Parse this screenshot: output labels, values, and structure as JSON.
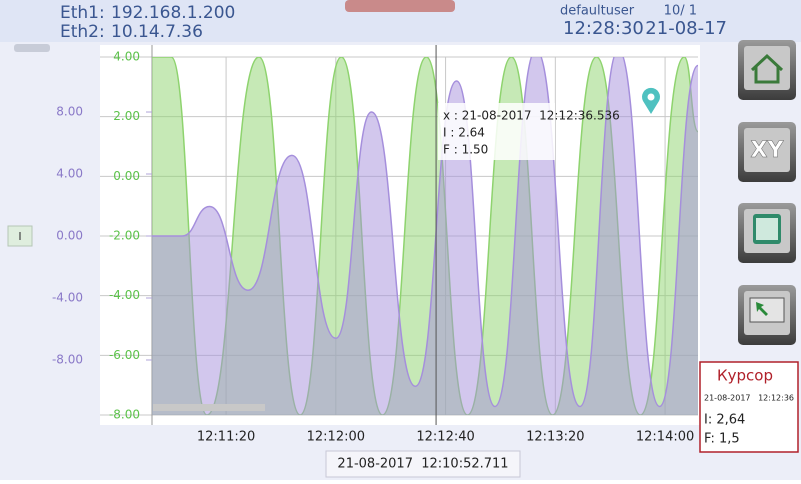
{
  "header": {
    "eth1": "Eth1:",
    "eth1_ip": "192.168.1.200",
    "eth2": "Eth2:",
    "eth2_ip": "10.14.7.36",
    "user": "defaultuser",
    "page": "10/ 1",
    "time": "12:28:30",
    "date": "21-08-17"
  },
  "chart_data": {
    "type": "line",
    "xlim": [
      44453,
      44652
    ],
    "xticks": [
      {
        "value": 44480,
        "label": "12:11:20"
      },
      {
        "value": 44520,
        "label": "12:12:00"
      },
      {
        "value": 44560,
        "label": "12:12:40"
      },
      {
        "value": 44600,
        "label": "12:13:20"
      },
      {
        "value": 44640,
        "label": "12:14:00"
      }
    ],
    "ylim": [
      -8,
      4
    ],
    "yticks": [
      {
        "value": 4,
        "label": "4.00"
      },
      {
        "value": 2,
        "label": "2.00"
      },
      {
        "value": 0,
        "label": "0.00"
      },
      {
        "value": -2,
        "label": "-2.00"
      },
      {
        "value": -4,
        "label": "-4.00"
      },
      {
        "value": -6,
        "label": "-6.00"
      },
      {
        "value": -8,
        "label": "-8.00"
      }
    ],
    "y2lim": [
      -11.55,
      11.55
    ],
    "y2ticks": [
      {
        "value": 8,
        "label": "8.00"
      },
      {
        "value": 4,
        "label": "4.00"
      },
      {
        "value": 0,
        "label": "0.00"
      },
      {
        "value": -4,
        "label": "-4.00"
      },
      {
        "value": -8,
        "label": "-8.00"
      }
    ],
    "grid": true,
    "cursor_x": 44556.536,
    "series": [
      {
        "name": "F",
        "color": "#8ed36e",
        "x": [
          44453,
          44460,
          44473,
          44492,
          44507,
          44522,
          44537,
          44553,
          44568,
          44584,
          44599,
          44615,
          44631,
          44647,
          44652
        ],
        "values": [
          4,
          4,
          -8,
          4,
          -8,
          4,
          -8,
          4,
          -8,
          4,
          -8,
          4,
          -8,
          4,
          1.5
        ]
      },
      {
        "name": "I",
        "color": "#a58fdc",
        "axis": "y2",
        "x": [
          44453,
          44464,
          44474,
          44488,
          44504,
          44520,
          44533,
          44549,
          44564,
          44578,
          44593,
          44609,
          44623,
          44638,
          44652
        ],
        "values": [
          0,
          0,
          1.9,
          -3.5,
          5.2,
          -6.6,
          8,
          -9.7,
          10,
          -11,
          12,
          -11,
          12,
          -11,
          11
        ]
      }
    ]
  },
  "footer": {
    "start": "21-08-2017  12:10:52.711"
  },
  "tooltip": {
    "x": "x : 21-08-2017  12:12:36.536",
    "i": "I : 2.64",
    "f": "F : 1.50"
  },
  "cursor_panel": {
    "title": "Курсор",
    "date": "21-08-2017",
    "time": "12:12:36",
    "i": "I: 2,64",
    "f": "F: 1,5"
  },
  "axis_toggle": "I",
  "xy_button": "XY"
}
